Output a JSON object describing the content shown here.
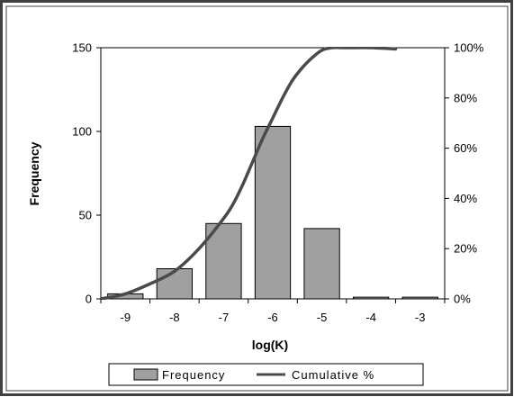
{
  "chart_data": {
    "type": "bar",
    "categories": [
      "-9",
      "-8",
      "-7",
      "-6",
      "-5",
      "-4",
      "-3"
    ],
    "series": [
      {
        "name": "Frequency",
        "type": "bar",
        "axis": "left",
        "values": [
          3,
          18,
          45,
          103,
          42,
          1,
          1
        ]
      },
      {
        "name": "Cumulative %",
        "type": "line",
        "axis": "right",
        "x": [
          -9.5,
          -9.0,
          -8.5,
          -8.0,
          -7.5,
          -7.0,
          -6.8,
          -6.6,
          -6.4,
          -6.2,
          -6.0,
          -5.8,
          -5.6,
          -5.4,
          -5.2,
          -5.0,
          -4.8,
          -4.5,
          -4.0,
          -3.5
        ],
        "values": [
          0.0,
          0.02,
          0.06,
          0.11,
          0.2,
          0.32,
          0.38,
          0.46,
          0.55,
          0.64,
          0.72,
          0.8,
          0.87,
          0.92,
          0.96,
          0.99,
          1.0,
          1.0,
          1.0,
          0.995
        ]
      }
    ],
    "xlabel": "log(K)",
    "ylabel": "Frequency",
    "ylim": [
      0,
      150
    ],
    "y_ticks": [
      "0",
      "50",
      "100",
      "150"
    ],
    "y2lim": [
      0,
      1
    ],
    "y2_ticks": [
      "0%",
      "20%",
      "40%",
      "60%",
      "80%",
      "100%"
    ],
    "grid": false,
    "legend_position": "bottom",
    "legend": [
      "Frequency",
      "Cumulative %"
    ],
    "colors": {
      "bar_fill": "#a0a0a0",
      "bar_stroke": "#000000",
      "line": "#4a4a4a",
      "frame": "#404040",
      "plot_bg": "#ffffff"
    }
  }
}
